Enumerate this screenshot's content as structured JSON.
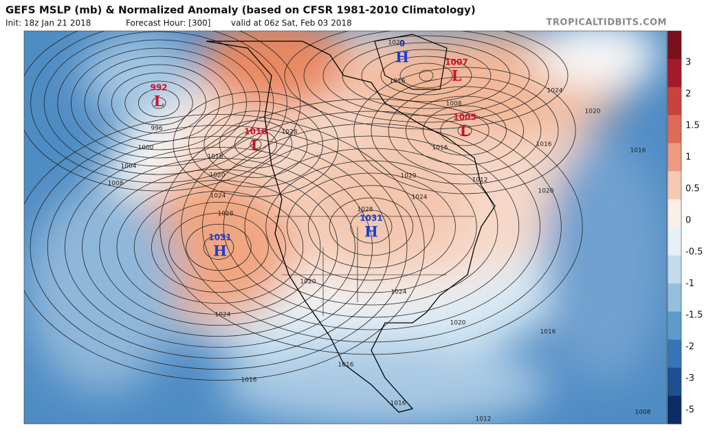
{
  "header": {
    "title": "GEFS MSLP (mb) & Normalized Anomaly (based on CFSR 1981-2010 Climatology)",
    "init": "Init: 18z Jan 21 2018",
    "forecast_hour": "Forecast Hour: [300]",
    "valid": "valid at 06z Sat, Feb 03 2018",
    "site": "TROPICALTIDBITS.COM"
  },
  "centers": [
    {
      "type": "L",
      "value": "992"
    },
    {
      "type": "L",
      "value": "1010"
    },
    {
      "type": "H",
      "value": "1031"
    },
    {
      "type": "H",
      "value": "1031"
    },
    {
      "type": "H",
      "value": "0"
    },
    {
      "type": "L",
      "value": "1007"
    },
    {
      "type": "L",
      "value": "1005"
    }
  ],
  "contour_labels": [
    "996",
    "1000",
    "1004",
    "1008",
    "1016",
    "1020",
    "1024",
    "1028",
    "1028",
    "1024",
    "1020",
    "1024",
    "1020",
    "1016",
    "1016",
    "1016",
    "1012",
    "1016",
    "1008",
    "1020",
    "1016",
    "1020",
    "1024",
    "1016",
    "1012",
    "1016",
    "1020",
    "1024",
    "1028",
    "1020",
    "1016",
    "1008"
  ],
  "colorbar": {
    "ticks": [
      3,
      2,
      1.5,
      1,
      0.5,
      0,
      -0.5,
      -1,
      -1.5,
      -2,
      -3,
      -5
    ]
  }
}
